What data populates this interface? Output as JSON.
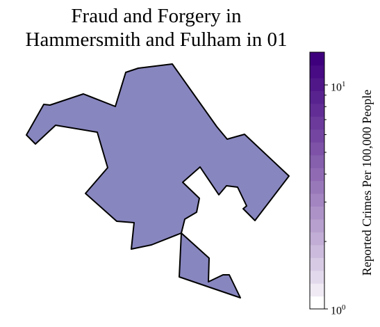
{
  "title_line1": "Fraud and Forgery in",
  "title_line2": "Hammersmith and Fulham in 01",
  "region": {
    "name": "Hammersmith and Fulham",
    "value": 4.2,
    "fill_color": "#8886bf",
    "stroke_color": "#000000"
  },
  "colorbar": {
    "label": "Reported Crimes Per 100,000 People",
    "scale": "log",
    "min": 1,
    "max": 14,
    "colormap": "Purples",
    "steps": 20,
    "major_ticks": [
      {
        "base": "10",
        "exp": "0",
        "value": 1
      },
      {
        "base": "10",
        "exp": "1",
        "value": 10
      }
    ]
  }
}
